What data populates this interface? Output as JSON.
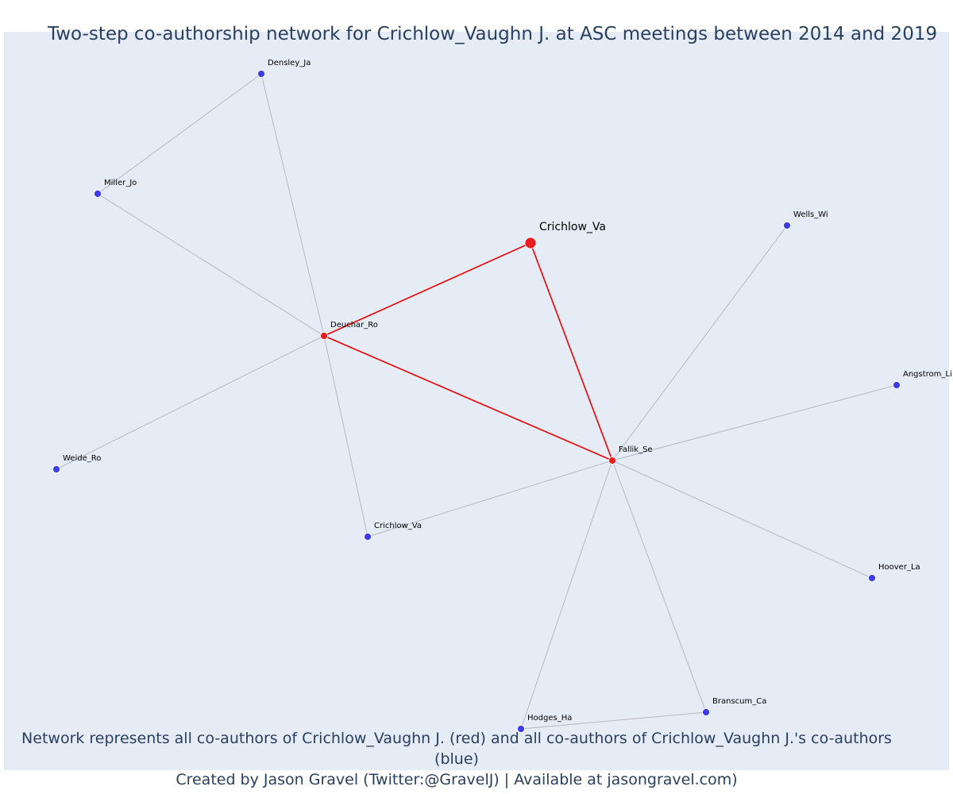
{
  "title": "Two-step co-authorship network for Crichlow_Vaughn J. at ASC meetings between 2014 and 2019",
  "footer": {
    "line1": "Network represents all co-authors of Crichlow_Vaughn J. (red) and all co-authors of Crichlow_Vaughn J.'s co-authors (blue)",
    "line2": "Created by Jason Gravel (Twitter:@GravelJ) | Available at jasongravel.com)"
  },
  "colors": {
    "background": "#e5ecf6",
    "direct": "#ee1c1c",
    "indirect": "#3b3bea",
    "edge_direct": "#ee0000",
    "edge_indirect": "#b7b7c7",
    "text": "#2a3f5f"
  },
  "nodes": [
    {
      "id": "crichlow_main",
      "label": "Crichlow_Va",
      "group": "focal"
    },
    {
      "id": "deuchar",
      "label": "Deuchar_Ro",
      "group": "direct"
    },
    {
      "id": "fallik",
      "label": "Fallik_Se",
      "group": "direct"
    },
    {
      "id": "densley",
      "label": "Densley_Ja",
      "group": "indirect"
    },
    {
      "id": "miller",
      "label": "Miller_Jo",
      "group": "indirect"
    },
    {
      "id": "weide",
      "label": "Weide_Ro",
      "group": "indirect"
    },
    {
      "id": "crichlow2",
      "label": "Crichlow_Va",
      "group": "indirect"
    },
    {
      "id": "wells",
      "label": "Wells_Wi",
      "group": "indirect"
    },
    {
      "id": "angstrom",
      "label": "Angstrom_Li",
      "group": "indirect"
    },
    {
      "id": "hoover",
      "label": "Hoover_La",
      "group": "indirect"
    },
    {
      "id": "branscum",
      "label": "Branscum_Ca",
      "group": "indirect"
    },
    {
      "id": "hodges",
      "label": "Hodges_Ha",
      "group": "indirect"
    }
  ],
  "edges": [
    {
      "source": "crichlow_main",
      "target": "deuchar",
      "type": "direct"
    },
    {
      "source": "crichlow_main",
      "target": "fallik",
      "type": "direct"
    },
    {
      "source": "deuchar",
      "target": "fallik",
      "type": "direct"
    },
    {
      "source": "densley",
      "target": "miller",
      "type": "indirect"
    },
    {
      "source": "densley",
      "target": "deuchar",
      "type": "indirect"
    },
    {
      "source": "miller",
      "target": "deuchar",
      "type": "indirect"
    },
    {
      "source": "weide",
      "target": "deuchar",
      "type": "indirect"
    },
    {
      "source": "deuchar",
      "target": "crichlow2",
      "type": "indirect"
    },
    {
      "source": "crichlow2",
      "target": "fallik",
      "type": "indirect"
    },
    {
      "source": "wells",
      "target": "fallik",
      "type": "indirect"
    },
    {
      "source": "angstrom",
      "target": "fallik",
      "type": "indirect"
    },
    {
      "source": "hoover",
      "target": "fallik",
      "type": "indirect"
    },
    {
      "source": "branscum",
      "target": "fallik",
      "type": "indirect"
    },
    {
      "source": "hodges",
      "target": "fallik",
      "type": "indirect"
    },
    {
      "source": "hodges",
      "target": "branscum",
      "type": "indirect"
    }
  ]
}
